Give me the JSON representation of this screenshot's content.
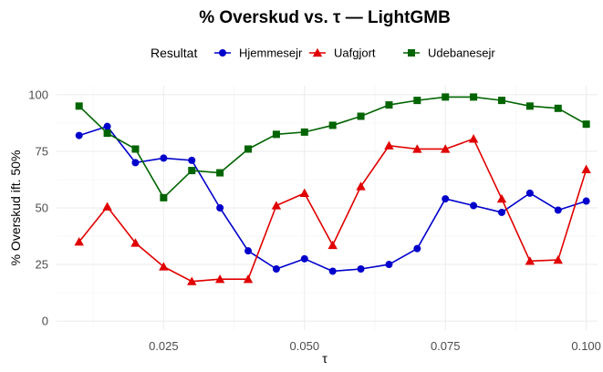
{
  "chart_data": {
    "type": "line",
    "title": "% Overskud vs. τ — LightGMB",
    "xlabel": "τ",
    "ylabel": "% Overskud ift. 50%",
    "xlim": [
      0.006,
      0.102
    ],
    "ylim": [
      -4,
      104
    ],
    "x_ticks": [
      0.025,
      0.05,
      0.075,
      0.1
    ],
    "x_tick_labels": [
      "0.025",
      "0.050",
      "0.075",
      "0.100"
    ],
    "y_ticks": [
      0,
      25,
      50,
      75,
      100
    ],
    "y_tick_labels": [
      "0",
      "25",
      "50",
      "75",
      "100"
    ],
    "grid": true,
    "legend": {
      "title": "Resultat",
      "position": "top"
    },
    "x": [
      0.01,
      0.015,
      0.02,
      0.025,
      0.03,
      0.035,
      0.04,
      0.045,
      0.05,
      0.055,
      0.06,
      0.065,
      0.07,
      0.075,
      0.08,
      0.085,
      0.09,
      0.095,
      0.1
    ],
    "series": [
      {
        "name": "Hjemmesejr",
        "color": "#0000cc",
        "marker": "circle",
        "values": [
          82,
          86,
          70,
          72,
          71,
          50,
          31,
          23,
          27.5,
          22,
          23,
          25,
          32,
          54,
          51,
          48,
          56.5,
          49,
          53
        ]
      },
      {
        "name": "Uafgjort",
        "color": "#e00000",
        "marker": "triangle",
        "values": [
          35,
          50.5,
          34.5,
          24,
          17.5,
          18.5,
          18.5,
          51,
          56.5,
          33.5,
          59.5,
          77.5,
          76,
          76,
          80.5,
          54,
          26.5,
          27,
          67
        ]
      },
      {
        "name": "Udebanesejr",
        "color": "#006400",
        "marker": "square",
        "values": [
          95,
          83,
          76,
          54.5,
          66.5,
          65.5,
          76,
          82.5,
          83.5,
          86.5,
          90.5,
          95.5,
          97.5,
          99,
          99,
          97.5,
          95,
          94,
          87
        ]
      }
    ]
  }
}
